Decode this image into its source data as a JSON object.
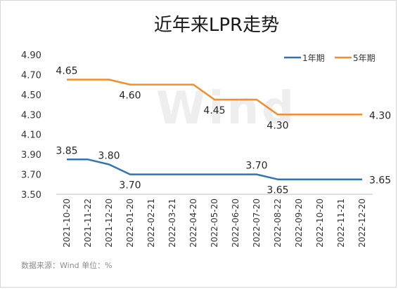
{
  "chart_data": {
    "type": "line",
    "title": "近年来LPR走势",
    "categories": [
      "2021-10-20",
      "2021-11-22",
      "2021-12-20",
      "2022-01-20",
      "2022-02-21",
      "2022-03-21",
      "2022-04-20",
      "2022-05-20",
      "2022-06-20",
      "2022-07-20",
      "2022-08-22",
      "2022-09-20",
      "2022-10-20",
      "2022-11-21",
      "2022-12-20"
    ],
    "series": [
      {
        "name": "1年期",
        "color": "#2e75b6",
        "values": [
          3.85,
          3.85,
          3.8,
          3.7,
          3.7,
          3.7,
          3.7,
          3.7,
          3.7,
          3.7,
          3.65,
          3.65,
          3.65,
          3.65,
          3.65
        ]
      },
      {
        "name": "5年期",
        "color": "#f28e2b",
        "values": [
          4.65,
          4.65,
          4.65,
          4.6,
          4.6,
          4.6,
          4.6,
          4.45,
          4.45,
          4.45,
          4.3,
          4.3,
          4.3,
          4.3,
          4.3
        ]
      }
    ],
    "y_ticks": [
      "3.50",
      "3.70",
      "3.90",
      "4.10",
      "4.30",
      "4.50",
      "4.70",
      "4.90"
    ],
    "ylim": [
      3.5,
      4.9
    ],
    "xlabel": "",
    "ylabel": "",
    "legend_position": "top-right",
    "grid": false,
    "annotations": [
      {
        "series": 0,
        "index": 0,
        "text": "3.85",
        "place": "above"
      },
      {
        "series": 0,
        "index": 2,
        "text": "3.80",
        "place": "above"
      },
      {
        "series": 0,
        "index": 3,
        "text": "3.70",
        "place": "below"
      },
      {
        "series": 0,
        "index": 9,
        "text": "3.70",
        "place": "above"
      },
      {
        "series": 0,
        "index": 10,
        "text": "3.65",
        "place": "below"
      },
      {
        "series": 0,
        "index": 14,
        "text": "3.65",
        "place": "right"
      },
      {
        "series": 1,
        "index": 0,
        "text": "4.65",
        "place": "above"
      },
      {
        "series": 1,
        "index": 3,
        "text": "4.60",
        "place": "below"
      },
      {
        "series": 1,
        "index": 7,
        "text": "4.45",
        "place": "below"
      },
      {
        "series": 1,
        "index": 10,
        "text": "4.30",
        "place": "below"
      },
      {
        "series": 1,
        "index": 14,
        "text": "4.30",
        "place": "right"
      }
    ]
  },
  "watermark": "Wind",
  "source_note": "数据来源：Wind   单位：%"
}
